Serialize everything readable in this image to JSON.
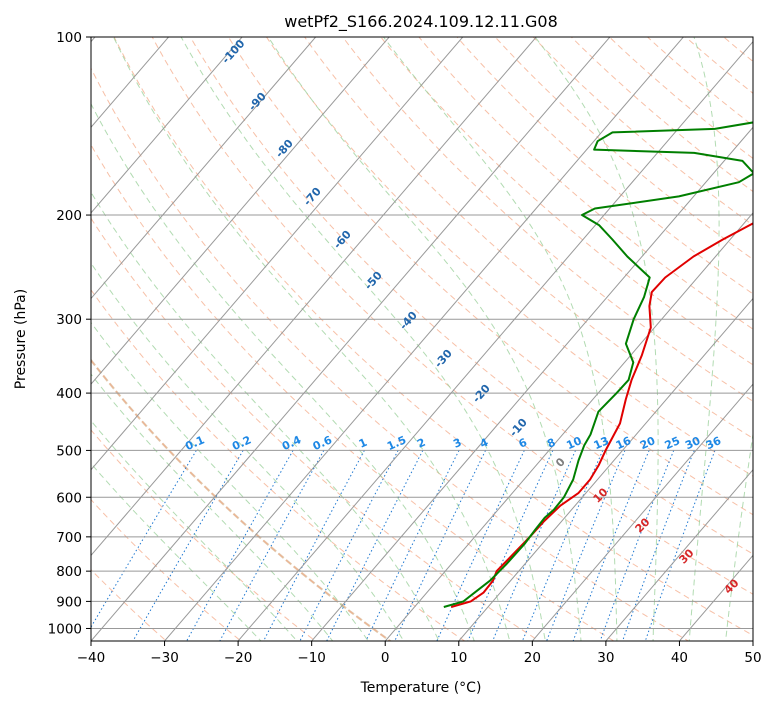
{
  "chart_data": {
    "type": "line",
    "title": "wetPf2_S166.2024.109.12.11.G08",
    "xlabel": "Temperature (°C)",
    "ylabel": "Pressure (hPa)",
    "xlim": [
      -40,
      50
    ],
    "ylim": [
      1050,
      100
    ],
    "y_scale": "log",
    "x_ticks": [
      -40,
      -30,
      -20,
      -10,
      0,
      10,
      20,
      30,
      40,
      50
    ],
    "y_ticks": [
      100,
      200,
      300,
      400,
      500,
      600,
      700,
      800,
      900,
      1000
    ],
    "grid": true,
    "series": [
      {
        "color": "#e00000",
        "points": [
          [
            5.0,
            920
          ],
          [
            7.0,
            900
          ],
          [
            7.7,
            870
          ],
          [
            7.6,
            830
          ],
          [
            7.0,
            800
          ],
          [
            7.2,
            760
          ],
          [
            7.5,
            700
          ],
          [
            7.6,
            660
          ],
          [
            8.0,
            620
          ],
          [
            9.0,
            590
          ],
          [
            9.0,
            560
          ],
          [
            8.5,
            530
          ],
          [
            7.7,
            500
          ],
          [
            6.5,
            450
          ],
          [
            4.5,
            410
          ],
          [
            3.0,
            380
          ],
          [
            1.5,
            345
          ],
          [
            -0.5,
            310
          ],
          [
            -3.2,
            285
          ],
          [
            -4.5,
            270
          ],
          [
            -4.4,
            255
          ],
          [
            -3.0,
            235
          ],
          [
            -1.0,
            220
          ],
          [
            1.5,
            205
          ],
          [
            3.5,
            195
          ],
          [
            5.0,
            185
          ],
          [
            6.5,
            178
          ],
          [
            9.5,
            170
          ],
          [
            13.5,
            162
          ],
          [
            17.5,
            154
          ],
          [
            19.0,
            146
          ],
          [
            21.0,
            138
          ],
          [
            21.5,
            130
          ],
          [
            23.0,
            122
          ],
          [
            24.5,
            117
          ],
          [
            25.5,
            112
          ],
          [
            26.8,
            107
          ],
          [
            28.2,
            101
          ]
        ]
      },
      {
        "color": "#007f00",
        "points": [
          [
            4.0,
            920
          ],
          [
            6.0,
            900
          ],
          [
            6.5,
            870
          ],
          [
            7.2,
            830
          ],
          [
            7.5,
            780
          ],
          [
            7.6,
            720
          ],
          [
            7.4,
            680
          ],
          [
            7.3,
            650
          ],
          [
            7.6,
            630
          ],
          [
            7.5,
            600
          ],
          [
            6.7,
            560
          ],
          [
            5.2,
            520
          ],
          [
            4.2,
            490
          ],
          [
            3.8,
            470
          ],
          [
            2.2,
            430
          ],
          [
            2.5,
            400
          ],
          [
            2.6,
            380
          ],
          [
            1.2,
            355
          ],
          [
            -2.0,
            330
          ],
          [
            -3.8,
            300
          ],
          [
            -5.0,
            275
          ],
          [
            -6.5,
            255
          ],
          [
            -12.0,
            235
          ],
          [
            -16.0,
            220
          ],
          [
            -19.5,
            208
          ],
          [
            -23.0,
            200
          ],
          [
            -22.0,
            195
          ],
          [
            -12.0,
            186
          ],
          [
            -5.5,
            176
          ],
          [
            -4.5,
            170
          ],
          [
            -7.5,
            162
          ],
          [
            -15.0,
            157
          ],
          [
            -29.0,
            155
          ],
          [
            -29.5,
            150
          ],
          [
            -28.5,
            145
          ],
          [
            -15.0,
            143
          ],
          [
            -10.0,
            139
          ],
          [
            -9.0,
            132
          ],
          [
            -7.0,
            124
          ],
          [
            -3.5,
            114
          ],
          [
            -1.5,
            106
          ],
          [
            0.4,
            100
          ]
        ]
      }
    ],
    "dry_adiabat_labels": [
      "-100",
      "-90",
      "-80",
      "-70",
      "-60",
      "-50",
      "-40",
      "-30",
      "-20",
      "-10"
    ],
    "moist_adiabat_labels": [
      "0",
      "10",
      "20",
      "30",
      "40"
    ],
    "mixing_ratio_labels": [
      "0.1",
      "0.2",
      "0.4",
      "0.6",
      "1",
      "1.5",
      "2",
      "3",
      "4",
      "6",
      "8",
      "10",
      "13",
      "16",
      "20",
      "25",
      "30",
      "36"
    ],
    "colors": {
      "isotherm": "#999999",
      "isobar": "#999999",
      "dry_adiabat": "#f4a582",
      "moist_adiabat": "#98cf98",
      "mixing_ratio": "#1f78d1",
      "dry_label": "#2166ac",
      "moist_label": "#d62728",
      "mixing_label": "#1e88e5",
      "zero_label": "#7f7f7f",
      "outer_circles": "#c8a070"
    }
  }
}
